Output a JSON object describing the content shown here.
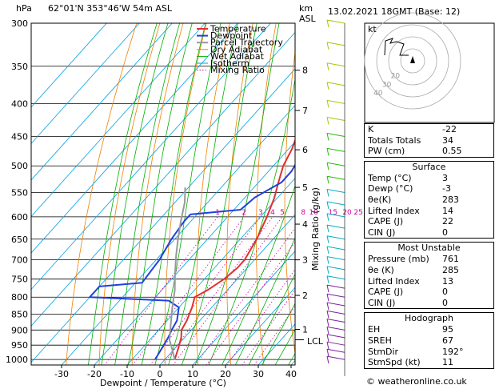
{
  "header": {
    "location": "62°01'N  353°46'W  54m  ASL",
    "datetime": "13.02.2021  18GMT  (Base: 12)",
    "hpa_label": "hPa",
    "km_label": "km",
    "asl_label": "ASL"
  },
  "chart_data": {
    "type": "line",
    "xlabel": "Dewpoint / Temperature (°C)",
    "ylabel": "Mixing Ratio (g/kg)",
    "x_ticks": [
      -30,
      -20,
      -10,
      0,
      10,
      20,
      30,
      40
    ],
    "xlim": [
      -40,
      40
    ],
    "pressure_levels": [
      300,
      350,
      400,
      450,
      500,
      550,
      600,
      650,
      700,
      750,
      800,
      850,
      900,
      950,
      1000
    ],
    "ylim": [
      300,
      1020
    ],
    "km_ticks": [
      {
        "km": "8",
        "p": 355
      },
      {
        "km": "7",
        "p": 410
      },
      {
        "km": "6",
        "p": 472
      },
      {
        "km": "5",
        "p": 540
      },
      {
        "km": "4",
        "p": 616
      },
      {
        "km": "3",
        "p": 700
      },
      {
        "km": "2",
        "p": 795
      },
      {
        "km": "1",
        "p": 898
      }
    ],
    "lcl": {
      "label": "LCL",
      "p": 932
    },
    "mixing_ratio_labels": [
      "1",
      "2",
      "3",
      "4",
      "5",
      "8",
      "10",
      "15",
      "20",
      "25"
    ],
    "mixing_ratio_values": [
      1,
      2,
      3,
      4,
      5,
      8,
      10,
      15,
      20,
      25
    ],
    "legend": [
      "Temperature",
      "Dewpoint",
      "Parcel Trajectory",
      "Dry Adiabat",
      "Wet Adiabat",
      "Isotherm",
      "Mixing Ratio"
    ],
    "colors": {
      "temperature": "#e03030",
      "dewpoint": "#2040e0",
      "parcel": "#999999",
      "dry_adiabat": "#f08000",
      "wet_adiabat": "#00b000",
      "isotherm": "#00a0e0",
      "mixing_ratio": "#d000a0"
    },
    "series": [
      {
        "name": "Temperature",
        "points": [
          [
            3,
            1000
          ],
          [
            1,
            960
          ],
          [
            -1,
            925
          ],
          [
            -3,
            900
          ],
          [
            -4,
            870
          ],
          [
            -6,
            830
          ],
          [
            -8,
            800
          ],
          [
            -6,
            780
          ],
          [
            -4,
            750
          ],
          [
            -3,
            720
          ],
          [
            -3,
            700
          ],
          [
            -5,
            650
          ],
          [
            -8,
            600
          ],
          [
            -11,
            560
          ],
          [
            -14,
            530
          ],
          [
            -17,
            500
          ],
          [
            -19,
            470
          ],
          [
            -21,
            450
          ],
          [
            -23,
            420
          ],
          [
            -25,
            400
          ],
          [
            -29,
            370
          ],
          [
            -32,
            350
          ],
          [
            -37,
            320
          ]
        ]
      },
      {
        "name": "Dewpoint",
        "points": [
          [
            -3,
            1000
          ],
          [
            -4,
            960
          ],
          [
            -5,
            925
          ],
          [
            -6,
            900
          ],
          [
            -7,
            870
          ],
          [
            -10,
            830
          ],
          [
            -15,
            810
          ],
          [
            -40,
            800
          ],
          [
            -40,
            770
          ],
          [
            -28,
            760
          ],
          [
            -29,
            700
          ],
          [
            -31,
            650
          ],
          [
            -32,
            610
          ],
          [
            -32,
            595
          ],
          [
            -18,
            585
          ],
          [
            -17,
            560
          ],
          [
            -13,
            530
          ],
          [
            -13,
            510
          ],
          [
            -14,
            490
          ],
          [
            -10,
            460
          ],
          [
            -15,
            420
          ],
          [
            -18,
            390
          ],
          [
            -22,
            360
          ],
          [
            -27,
            320
          ]
        ]
      },
      {
        "name": "Parcel Trajectory",
        "points": [
          [
            3,
            1000
          ],
          [
            -1,
            960
          ],
          [
            -4,
            932
          ],
          [
            -8,
            880
          ],
          [
            -12,
            830
          ],
          [
            -16,
            780
          ],
          [
            -20,
            740
          ],
          [
            -25,
            690
          ],
          [
            -29,
            650
          ],
          [
            -33,
            610
          ],
          [
            -37,
            570
          ],
          [
            -41,
            540
          ]
        ]
      }
    ]
  },
  "hodograph": {
    "label": "kt",
    "ring_labels": [
      "20",
      "30",
      "40"
    ]
  },
  "indices": {
    "rows": [
      {
        "label": "K",
        "value": "-22"
      },
      {
        "label": "Totals Totals",
        "value": "34"
      },
      {
        "label": "PW (cm)",
        "value": "0.55"
      }
    ]
  },
  "surface": {
    "title": "Surface",
    "rows": [
      {
        "label": "Temp (°C)",
        "value": "3"
      },
      {
        "label": "Dewp (°C)",
        "value": "-3"
      },
      {
        "label": "θe(K)",
        "value": "283"
      },
      {
        "label": "Lifted Index",
        "value": "14"
      },
      {
        "label": "CAPE (J)",
        "value": "22"
      },
      {
        "label": "CIN (J)",
        "value": "0"
      }
    ]
  },
  "most_unstable": {
    "title": "Most Unstable",
    "rows": [
      {
        "label": "Pressure (mb)",
        "value": "761"
      },
      {
        "label": "θe (K)",
        "value": "285"
      },
      {
        "label": "Lifted Index",
        "value": "13"
      },
      {
        "label": "CAPE (J)",
        "value": "0"
      },
      {
        "label": "CIN (J)",
        "value": "0"
      }
    ]
  },
  "hodograph_box": {
    "title": "Hodograph",
    "rows": [
      {
        "label": "EH",
        "value": "95"
      },
      {
        "label": "SREH",
        "value": "67"
      },
      {
        "label": "StmDir",
        "value": "192°"
      },
      {
        "label": "StmSpd (kt)",
        "value": "11"
      }
    ]
  },
  "footer": {
    "copyright": "© weatheronline.co.uk"
  }
}
